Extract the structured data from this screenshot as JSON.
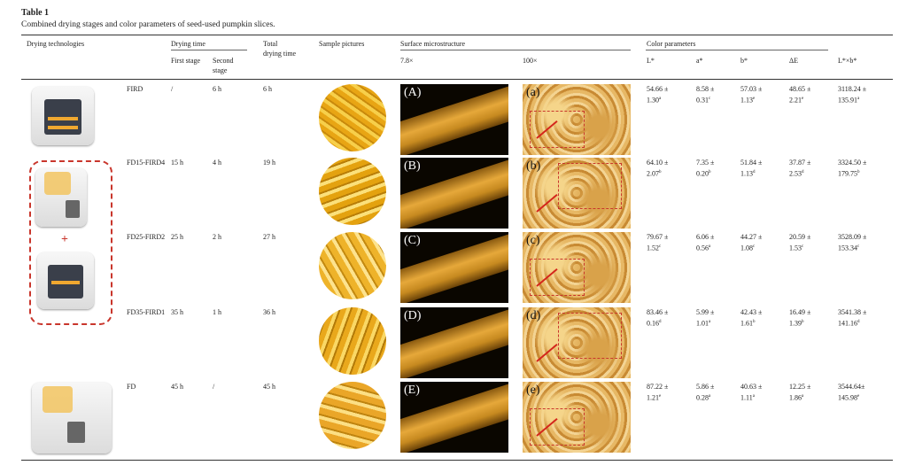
{
  "table_label": "Table 1",
  "caption": "Combined drying stages and color parameters of seed-used pumpkin slices.",
  "headers": {
    "drying_technologies": "Drying technologies",
    "drying_time": "Drying time",
    "first_stage": "First stage",
    "second_stage": "Second stage",
    "total_time": "Total drying time",
    "sample_pictures": "Sample pictures",
    "surface_microstructure": "Surface microstructure",
    "mag_low": "7.8×",
    "mag_high": "100×",
    "color_parameters": "Color parameters",
    "L": "L*",
    "a": "a*",
    "b": "b*",
    "dE": "ΔE",
    "Lb": "L*×b*"
  },
  "plus_sign": "+",
  "rows": [
    {
      "name": "FIRD",
      "first": "/",
      "second": "6 h",
      "total": "6 h",
      "low_label": "(A)",
      "high_label": "(a)",
      "L": "54.66 ±",
      "L2": "1.30",
      "Ls": "a",
      "a": "8.58 ±",
      "a2": "0.31",
      "as": "c",
      "b": "57.03 ±",
      "b2": "1.13",
      "bs": "e",
      "dE": "48.65 ±",
      "dE2": "2.21",
      "dEs": "e",
      "Lb": "3118.24 ±",
      "Lb2": "135.91",
      "Lbs": "a"
    },
    {
      "name": "FD15-FIRD4",
      "first": "15 h",
      "second": "4 h",
      "total": "19 h",
      "low_label": "(B)",
      "high_label": "(b)",
      "L": "64.10 ±",
      "L2": "2.07",
      "Ls": "b",
      "a": "7.35 ±",
      "a2": "0.20",
      "as": "b",
      "b": "51.84 ±",
      "b2": "1.13",
      "bs": "d",
      "dE": "37.87 ±",
      "dE2": "2.53",
      "dEs": "d",
      "Lb": "3324.50 ±",
      "Lb2": "179.75",
      "Lbs": "b"
    },
    {
      "name": "FD25-FIRD2",
      "first": "25 h",
      "second": "2 h",
      "total": "27 h",
      "low_label": "(C)",
      "high_label": "(c)",
      "L": "79.67 ±",
      "L2": "1.52",
      "Ls": "c",
      "a": "6.06 ±",
      "a2": "0.56",
      "as": "a",
      "b": "44.27 ±",
      "b2": "1.08",
      "bs": "c",
      "dE": "20.59 ±",
      "dE2": "1.53",
      "dEs": "c",
      "Lb": "3528.09 ±",
      "Lb2": "153.34",
      "Lbs": "c"
    },
    {
      "name": "FD35-FIRD1",
      "first": "35 h",
      "second": "1 h",
      "total": "36 h",
      "low_label": "(D)",
      "high_label": "(d)",
      "L": "83.46 ±",
      "L2": "0.16",
      "Ls": "d",
      "a": "5.99 ±",
      "a2": "1.01",
      "as": "a",
      "b": "42.43 ±",
      "b2": "1.61",
      "bs": "b",
      "dE": "16.49 ±",
      "dE2": "1.39",
      "dEs": "b",
      "Lb": "3541.38 ±",
      "Lb2": "141.16",
      "Lbs": "d"
    },
    {
      "name": "FD",
      "first": "45 h",
      "second": "/",
      "total": "45 h",
      "low_label": "(E)",
      "high_label": "(e)",
      "L": "87.22 ±",
      "L2": "1.21",
      "Ls": "e",
      "a": "5.86 ±",
      "a2": "0.28",
      "as": "a",
      "b": "40.63 ±",
      "b2": "1.11",
      "bs": "a",
      "dE": "12.25 ±",
      "dE2": "1.86",
      "dEs": "a",
      "Lb": "3544.64±",
      "Lb2": "145.98",
      "Lbs": "e"
    }
  ],
  "colors": {
    "accent_dash": "#c9362c",
    "pumpkin": "#e8a514"
  }
}
